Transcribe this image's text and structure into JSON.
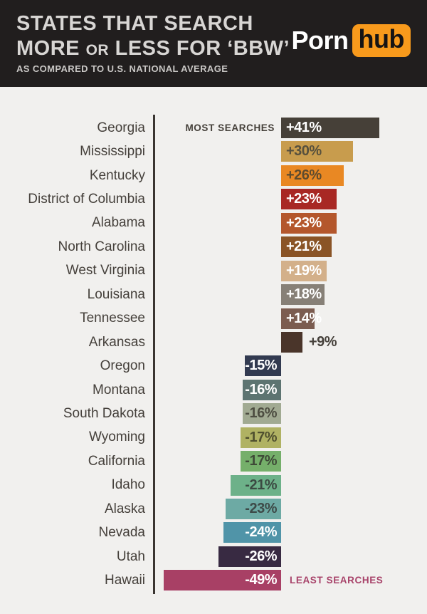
{
  "header": {
    "title_line1": "STATES THAT SEARCH",
    "title_line2_pre": "MORE",
    "title_line2_or": "OR",
    "title_line2_post": "LESS FOR ‘BBW’",
    "subtitle": "AS COMPARED TO U.S. NATIONAL AVERAGE",
    "background_color": "#211e1e",
    "text_color": "#d8d6d4",
    "logo": {
      "part1": "Porn",
      "part2": "hub",
      "accent_color": "#f89a1c",
      "part1_color": "#ffffff",
      "part2_color": "#161414"
    }
  },
  "chart_data": {
    "type": "bar",
    "orientation": "horizontal-diverging",
    "title": "States that search more or less for ‘BBW’",
    "subtitle": "As compared to U.S. national average",
    "unit": "% vs U.S. national average",
    "xlim": [
      -55,
      45
    ],
    "grid": false,
    "legend": "none",
    "background_color": "#f1f0ee",
    "axis_color": "#3a3531",
    "label_color": "#45403b",
    "annotations": {
      "most_label": "MOST SEARCHES",
      "most_color": "#45403a",
      "least_label": "LEAST SEARCHES",
      "least_color": "#a8436a"
    },
    "categories": [
      "Georgia",
      "Mississippi",
      "Kentucky",
      "District of Columbia",
      "Alabama",
      "North Carolina",
      "West Virginia",
      "Louisiana",
      "Tennessee",
      "Arkansas",
      "Oregon",
      "Montana",
      "South Dakota",
      "Wyoming",
      "California",
      "Idaho",
      "Alaska",
      "Nevada",
      "Utah",
      "Hawaii"
    ],
    "values": [
      41,
      30,
      26,
      23,
      23,
      21,
      19,
      18,
      14,
      9,
      -15,
      -16,
      -16,
      -17,
      -17,
      -21,
      -23,
      -24,
      -26,
      -49
    ],
    "bars": [
      {
        "state": "Georgia",
        "value": 41,
        "label": "+41%",
        "bar_color": "#464038",
        "text_color": "#ffffff"
      },
      {
        "state": "Mississippi",
        "value": 30,
        "label": "+30%",
        "bar_color": "#c89c4d",
        "text_color": "#57503d"
      },
      {
        "state": "Kentucky",
        "value": 26,
        "label": "+26%",
        "bar_color": "#e98823",
        "text_color": "#5e4b2d"
      },
      {
        "state": "District of Columbia",
        "value": 23,
        "label": "+23%",
        "bar_color": "#a82824",
        "text_color": "#ffffff"
      },
      {
        "state": "Alabama",
        "value": 23,
        "label": "+23%",
        "bar_color": "#b4572c",
        "text_color": "#ffffff"
      },
      {
        "state": "North Carolina",
        "value": 21,
        "label": "+21%",
        "bar_color": "#8a5426",
        "text_color": "#ffffff"
      },
      {
        "state": "West Virginia",
        "value": 19,
        "label": "+19%",
        "bar_color": "#d3b08a",
        "text_color": "#ffffff"
      },
      {
        "state": "Louisiana",
        "value": 18,
        "label": "+18%",
        "bar_color": "#878077",
        "text_color": "#ffffff"
      },
      {
        "state": "Tennessee",
        "value": 14,
        "label": "+14%",
        "bar_color": "#7b5c50",
        "text_color": "#ffffff"
      },
      {
        "state": "Arkansas",
        "value": 9,
        "label": "+9%",
        "bar_color": "#4a352a",
        "text_color": "#45403a",
        "label_outside": true
      },
      {
        "state": "Oregon",
        "value": -15,
        "label": "-15%",
        "bar_color": "#323a50",
        "text_color": "#ffffff"
      },
      {
        "state": "Montana",
        "value": -16,
        "label": "-16%",
        "bar_color": "#5d7471",
        "text_color": "#ffffff"
      },
      {
        "state": "South Dakota",
        "value": -16,
        "label": "-16%",
        "bar_color": "#a1aa92",
        "text_color": "#4d4d41"
      },
      {
        "state": "Wyoming",
        "value": -17,
        "label": "-17%",
        "bar_color": "#b0b263",
        "text_color": "#50502f"
      },
      {
        "state": "California",
        "value": -17,
        "label": "-17%",
        "bar_color": "#75af6a",
        "text_color": "#3e4a37"
      },
      {
        "state": "Idaho",
        "value": -21,
        "label": "-21%",
        "bar_color": "#6db189",
        "text_color": "#3b4a42"
      },
      {
        "state": "Alaska",
        "value": -23,
        "label": "-23%",
        "bar_color": "#6daaa4",
        "text_color": "#3d4a48"
      },
      {
        "state": "Nevada",
        "value": -24,
        "label": "-24%",
        "bar_color": "#5094a8",
        "text_color": "#ffffff"
      },
      {
        "state": "Utah",
        "value": -26,
        "label": "-26%",
        "bar_color": "#382a42",
        "text_color": "#ffffff"
      },
      {
        "state": "Hawaii",
        "value": -49,
        "label": "-49%",
        "bar_color": "#a84065",
        "text_color": "#ffffff"
      }
    ]
  }
}
